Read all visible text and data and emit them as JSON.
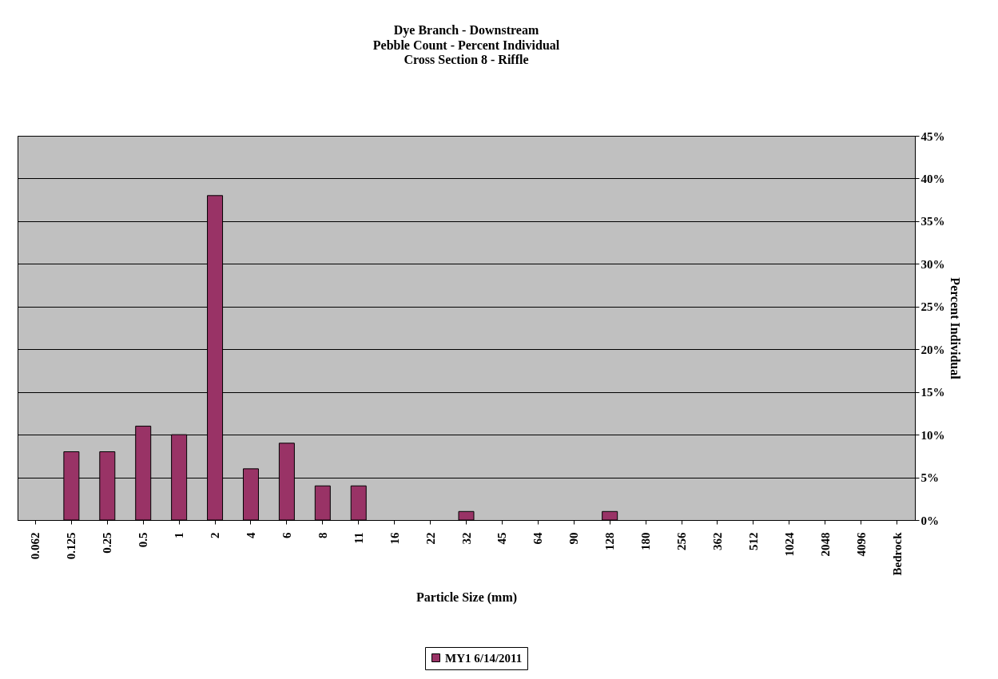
{
  "chart_data": {
    "type": "bar",
    "title": "Dye Branch - Downstream",
    "subtitle": [
      "Pebble Count - Percent Individual",
      "Cross Section 8 - Riffle"
    ],
    "xlabel": "Particle Size (mm)",
    "ylabel": "Percent Individual",
    "categories": [
      "0.062",
      "0.125",
      "0.25",
      "0.5",
      "1",
      "2",
      "4",
      "6",
      "8",
      "11",
      "16",
      "22",
      "32",
      "45",
      "64",
      "90",
      "128",
      "180",
      "256",
      "362",
      "512",
      "1024",
      "2048",
      "4096",
      "Bedrock"
    ],
    "series": [
      {
        "name": "MY1 6/14/2011",
        "color": "#993366",
        "values": [
          0,
          8,
          8,
          11,
          10,
          38,
          6,
          9,
          4,
          4,
          0,
          0,
          1,
          0,
          0,
          0,
          1,
          0,
          0,
          0,
          0,
          0,
          0,
          0,
          0
        ]
      }
    ],
    "ylim": [
      0,
      45
    ],
    "yticks": [
      {
        "value": 0,
        "label": "0%"
      },
      {
        "value": 5,
        "label": "5%"
      },
      {
        "value": 10,
        "label": "10%"
      },
      {
        "value": 15,
        "label": "15%"
      },
      {
        "value": 20,
        "label": "20%"
      },
      {
        "value": 25,
        "label": "25%"
      },
      {
        "value": 30,
        "label": "30%"
      },
      {
        "value": 35,
        "label": "35%"
      },
      {
        "value": 40,
        "label": "40%"
      },
      {
        "value": 45,
        "label": "45%"
      }
    ],
    "grid": "y",
    "legend": "bottom"
  }
}
